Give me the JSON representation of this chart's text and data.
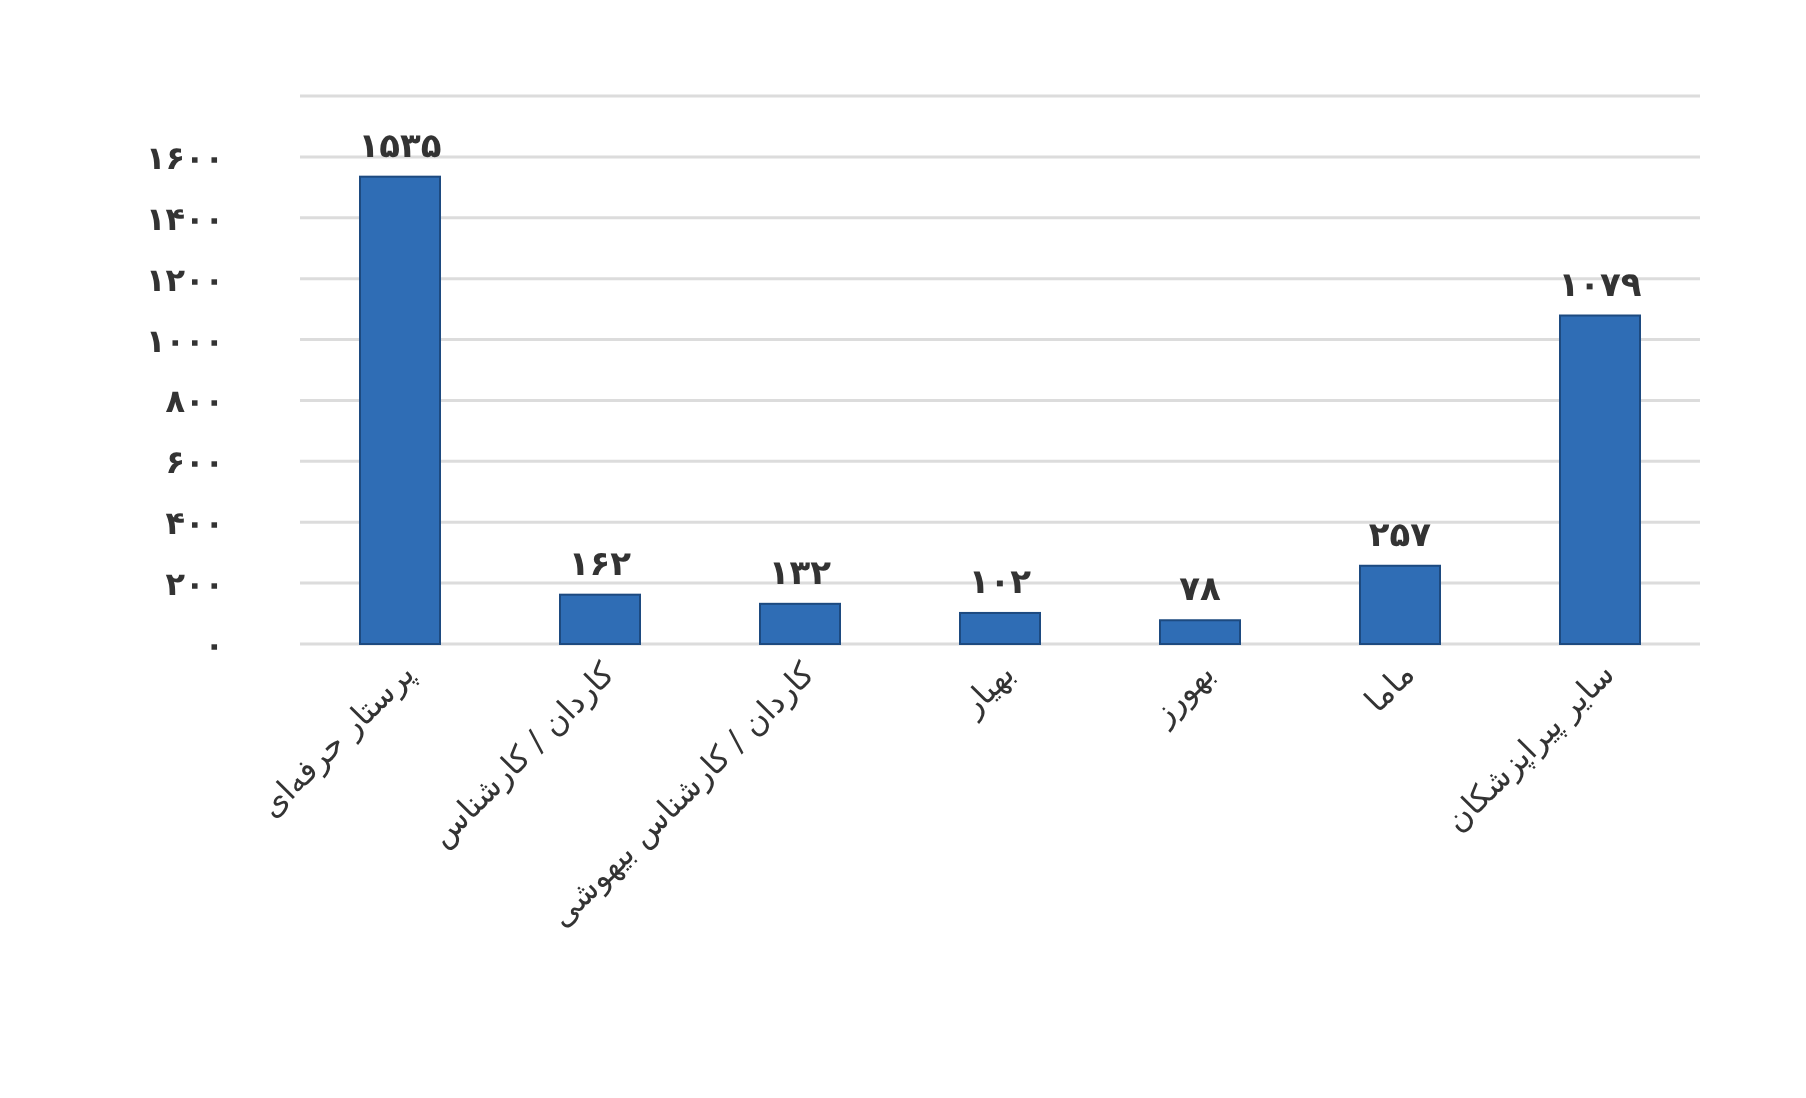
{
  "chart_data": {
    "type": "bar",
    "categories": [
      "پرستار حرفه‌ای",
      "کاردان / کارشناس",
      "کاردان / کارشناس بیهوشی",
      "بهیار",
      "بهورز",
      "ماما",
      "سایر پیراپزشکان"
    ],
    "values": [
      1535,
      162,
      132,
      102,
      78,
      257,
      1079
    ],
    "value_labels": [
      "۱۵۳۵",
      "۱۶۲",
      "۱۳۲",
      "۱۰۲",
      "۷۸",
      "۲۵۷",
      "۱۰۷۹"
    ],
    "color": "#2f6db5",
    "ylim": [
      0,
      1800
    ],
    "yticks": [
      {
        "value": 0,
        "label": "۰"
      },
      {
        "value": 200,
        "label": "۲۰۰"
      },
      {
        "value": 400,
        "label": "۴۰۰"
      },
      {
        "value": 600,
        "label": "۶۰۰"
      },
      {
        "value": 800,
        "label": "۸۰۰"
      },
      {
        "value": 1000,
        "label": "۱۰۰۰"
      },
      {
        "value": 1200,
        "label": "۱۲۰۰"
      },
      {
        "value": 1400,
        "label": "۱۴۰۰"
      },
      {
        "value": 1600,
        "label": "۱۶۰۰"
      },
      {
        "value": 1800,
        "label": null
      }
    ],
    "grid": "y"
  }
}
